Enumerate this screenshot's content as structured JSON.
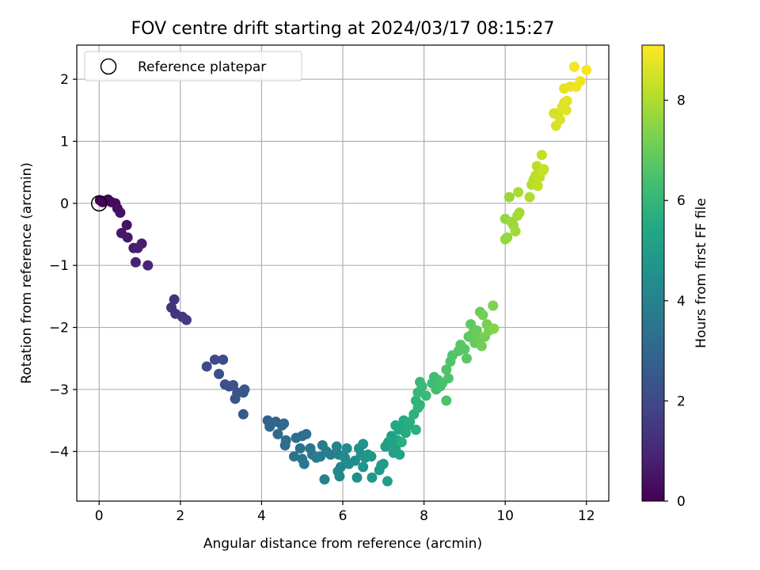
{
  "chart_data": {
    "type": "scatter",
    "title": "FOV centre drift starting at 2024/03/17 08:15:27",
    "xlabel": "Angular distance from reference (arcmin)",
    "ylabel": "Rotation from reference (arcmin)",
    "xlim": [
      -0.55,
      12.55
    ],
    "ylim": [
      -4.8,
      2.55
    ],
    "xticks": [
      0,
      2,
      4,
      6,
      8,
      10,
      12
    ],
    "yticks": [
      -4,
      -3,
      -2,
      -1,
      0,
      1,
      2
    ],
    "grid": true,
    "legend": {
      "position": "upper-left",
      "entries": [
        {
          "label": "Reference platepar",
          "marker": "open-circle"
        }
      ]
    },
    "reference_point": {
      "x": 0,
      "y": 0
    },
    "colorbar": {
      "label": "Hours from first FF file",
      "colormap": "viridis",
      "range": [
        0,
        9.1
      ],
      "ticks": [
        0,
        2,
        4,
        6,
        8
      ]
    },
    "points": [
      {
        "x": 0.02,
        "y": 0.05,
        "t": 0.0
      },
      {
        "x": 0.08,
        "y": 0.02,
        "t": 0.05
      },
      {
        "x": 0.14,
        "y": 0.04,
        "t": 0.1
      },
      {
        "x": 0.22,
        "y": 0.06,
        "t": 0.15
      },
      {
        "x": 0.3,
        "y": 0.02,
        "t": 0.2
      },
      {
        "x": 0.4,
        "y": 0.0,
        "t": 0.3
      },
      {
        "x": 0.45,
        "y": -0.08,
        "t": 0.35
      },
      {
        "x": 0.52,
        "y": -0.15,
        "t": 0.4
      },
      {
        "x": 0.68,
        "y": -0.35,
        "t": 0.5
      },
      {
        "x": 0.55,
        "y": -0.48,
        "t": 0.55
      },
      {
        "x": 0.7,
        "y": -0.55,
        "t": 0.6
      },
      {
        "x": 0.85,
        "y": -0.72,
        "t": 0.7
      },
      {
        "x": 1.05,
        "y": -0.65,
        "t": 0.75
      },
      {
        "x": 0.95,
        "y": -0.72,
        "t": 0.8
      },
      {
        "x": 0.9,
        "y": -0.95,
        "t": 0.85
      },
      {
        "x": 1.2,
        "y": -1.0,
        "t": 0.95
      },
      {
        "x": 1.78,
        "y": -1.68,
        "t": 1.3
      },
      {
        "x": 1.85,
        "y": -1.55,
        "t": 1.35
      },
      {
        "x": 1.88,
        "y": -1.78,
        "t": 1.4
      },
      {
        "x": 2.05,
        "y": -1.83,
        "t": 1.5
      },
      {
        "x": 2.15,
        "y": -1.88,
        "t": 1.55
      },
      {
        "x": 2.65,
        "y": -2.63,
        "t": 2.0
      },
      {
        "x": 2.85,
        "y": -2.52,
        "t": 2.05
      },
      {
        "x": 3.05,
        "y": -2.52,
        "t": 2.1
      },
      {
        "x": 2.95,
        "y": -2.75,
        "t": 2.15
      },
      {
        "x": 3.1,
        "y": -2.92,
        "t": 2.2
      },
      {
        "x": 3.2,
        "y": -2.95,
        "t": 2.25
      },
      {
        "x": 3.3,
        "y": -2.93,
        "t": 2.3
      },
      {
        "x": 3.4,
        "y": -3.05,
        "t": 2.35
      },
      {
        "x": 3.35,
        "y": -3.15,
        "t": 2.4
      },
      {
        "x": 3.55,
        "y": -3.05,
        "t": 2.45
      },
      {
        "x": 3.58,
        "y": -3.0,
        "t": 2.5
      },
      {
        "x": 3.55,
        "y": -3.4,
        "t": 2.55
      },
      {
        "x": 4.15,
        "y": -3.5,
        "t": 2.85
      },
      {
        "x": 4.35,
        "y": -3.52,
        "t": 2.9
      },
      {
        "x": 4.2,
        "y": -3.6,
        "t": 2.95
      },
      {
        "x": 4.5,
        "y": -3.58,
        "t": 3.0
      },
      {
        "x": 4.55,
        "y": -3.55,
        "t": 3.05
      },
      {
        "x": 4.4,
        "y": -3.72,
        "t": 3.1
      },
      {
        "x": 4.6,
        "y": -3.82,
        "t": 3.15
      },
      {
        "x": 4.58,
        "y": -3.9,
        "t": 3.2
      },
      {
        "x": 4.85,
        "y": -3.78,
        "t": 3.25
      },
      {
        "x": 5.0,
        "y": -3.75,
        "t": 3.3
      },
      {
        "x": 5.1,
        "y": -3.72,
        "t": 3.35
      },
      {
        "x": 4.95,
        "y": -3.95,
        "t": 3.4
      },
      {
        "x": 5.2,
        "y": -3.95,
        "t": 3.45
      },
      {
        "x": 4.8,
        "y": -4.08,
        "t": 3.5
      },
      {
        "x": 5.0,
        "y": -4.12,
        "t": 3.55
      },
      {
        "x": 5.05,
        "y": -4.2,
        "t": 3.6
      },
      {
        "x": 5.25,
        "y": -4.05,
        "t": 3.65
      },
      {
        "x": 5.35,
        "y": -4.1,
        "t": 3.7
      },
      {
        "x": 5.45,
        "y": -4.08,
        "t": 3.75
      },
      {
        "x": 5.5,
        "y": -3.9,
        "t": 3.8
      },
      {
        "x": 5.6,
        "y": -4.0,
        "t": 3.85
      },
      {
        "x": 5.7,
        "y": -4.05,
        "t": 3.9
      },
      {
        "x": 5.55,
        "y": -4.45,
        "t": 3.95
      },
      {
        "x": 5.85,
        "y": -3.92,
        "t": 4.0
      },
      {
        "x": 5.9,
        "y": -4.05,
        "t": 4.05
      },
      {
        "x": 5.95,
        "y": -4.25,
        "t": 4.1
      },
      {
        "x": 5.88,
        "y": -4.32,
        "t": 4.15
      },
      {
        "x": 5.92,
        "y": -4.4,
        "t": 4.2
      },
      {
        "x": 6.05,
        "y": -4.1,
        "t": 4.25
      },
      {
        "x": 6.1,
        "y": -3.95,
        "t": 4.3
      },
      {
        "x": 6.15,
        "y": -4.2,
        "t": 4.35
      },
      {
        "x": 6.3,
        "y": -4.15,
        "t": 4.4
      },
      {
        "x": 6.35,
        "y": -4.42,
        "t": 4.45
      },
      {
        "x": 6.4,
        "y": -3.95,
        "t": 4.5
      },
      {
        "x": 6.45,
        "y": -4.05,
        "t": 4.55
      },
      {
        "x": 6.5,
        "y": -3.88,
        "t": 4.6
      },
      {
        "x": 6.55,
        "y": -4.1,
        "t": 4.65
      },
      {
        "x": 6.5,
        "y": -4.25,
        "t": 4.7
      },
      {
        "x": 6.62,
        "y": -4.05,
        "t": 4.75
      },
      {
        "x": 6.7,
        "y": -4.08,
        "t": 4.8
      },
      {
        "x": 6.72,
        "y": -4.42,
        "t": 4.85
      },
      {
        "x": 6.9,
        "y": -4.3,
        "t": 4.9
      },
      {
        "x": 6.95,
        "y": -4.22,
        "t": 4.95
      },
      {
        "x": 7.0,
        "y": -4.2,
        "t": 5.0
      },
      {
        "x": 7.05,
        "y": -3.92,
        "t": 5.05
      },
      {
        "x": 7.1,
        "y": -4.48,
        "t": 5.1
      },
      {
        "x": 7.12,
        "y": -3.85,
        "t": 5.1
      },
      {
        "x": 7.2,
        "y": -3.75,
        "t": 5.15
      },
      {
        "x": 7.25,
        "y": -4.02,
        "t": 5.15
      },
      {
        "x": 7.3,
        "y": -3.95,
        "t": 5.2
      },
      {
        "x": 7.2,
        "y": -3.85,
        "t": 5.25
      },
      {
        "x": 7.35,
        "y": -3.82,
        "t": 5.3
      },
      {
        "x": 7.4,
        "y": -4.05,
        "t": 5.3
      },
      {
        "x": 7.38,
        "y": -3.65,
        "t": 5.35
      },
      {
        "x": 7.45,
        "y": -3.6,
        "t": 5.4
      },
      {
        "x": 7.3,
        "y": -3.58,
        "t": 5.45
      },
      {
        "x": 7.5,
        "y": -3.5,
        "t": 5.5
      },
      {
        "x": 7.55,
        "y": -3.7,
        "t": 5.55
      },
      {
        "x": 7.6,
        "y": -3.58,
        "t": 5.6
      },
      {
        "x": 7.65,
        "y": -3.52,
        "t": 5.65
      },
      {
        "x": 7.45,
        "y": -3.85,
        "t": 5.7
      },
      {
        "x": 7.8,
        "y": -3.65,
        "t": 5.75
      },
      {
        "x": 7.75,
        "y": -3.4,
        "t": 5.8
      },
      {
        "x": 7.85,
        "y": -3.3,
        "t": 5.85
      },
      {
        "x": 7.8,
        "y": -3.18,
        "t": 5.9
      },
      {
        "x": 7.9,
        "y": -3.25,
        "t": 5.95
      },
      {
        "x": 7.85,
        "y": -3.05,
        "t": 6.0
      },
      {
        "x": 7.95,
        "y": -2.95,
        "t": 6.05
      },
      {
        "x": 7.9,
        "y": -2.88,
        "t": 6.1
      },
      {
        "x": 8.05,
        "y": -3.1,
        "t": 6.15
      },
      {
        "x": 8.2,
        "y": -2.9,
        "t": 6.2
      },
      {
        "x": 8.25,
        "y": -2.8,
        "t": 6.25
      },
      {
        "x": 8.3,
        "y": -3.0,
        "t": 6.3
      },
      {
        "x": 8.35,
        "y": -2.85,
        "t": 6.35
      },
      {
        "x": 8.4,
        "y": -2.95,
        "t": 6.4
      },
      {
        "x": 8.45,
        "y": -2.9,
        "t": 6.4
      },
      {
        "x": 8.55,
        "y": -3.18,
        "t": 6.45
      },
      {
        "x": 8.6,
        "y": -2.82,
        "t": 6.5
      },
      {
        "x": 8.55,
        "y": -2.68,
        "t": 6.55
      },
      {
        "x": 8.65,
        "y": -2.55,
        "t": 6.55
      },
      {
        "x": 8.7,
        "y": -2.45,
        "t": 6.6
      },
      {
        "x": 8.85,
        "y": -2.38,
        "t": 6.65
      },
      {
        "x": 8.9,
        "y": -2.28,
        "t": 6.7
      },
      {
        "x": 9.0,
        "y": -2.35,
        "t": 6.7
      },
      {
        "x": 9.05,
        "y": -2.5,
        "t": 6.75
      },
      {
        "x": 9.1,
        "y": -2.15,
        "t": 6.8
      },
      {
        "x": 9.15,
        "y": -1.95,
        "t": 6.85
      },
      {
        "x": 9.2,
        "y": -2.1,
        "t": 6.9
      },
      {
        "x": 9.25,
        "y": -2.25,
        "t": 6.95
      },
      {
        "x": 9.3,
        "y": -2.05,
        "t": 7.0
      },
      {
        "x": 9.35,
        "y": -2.2,
        "t": 7.05
      },
      {
        "x": 9.38,
        "y": -1.75,
        "t": 7.1
      },
      {
        "x": 9.42,
        "y": -2.3,
        "t": 7.15
      },
      {
        "x": 9.45,
        "y": -1.8,
        "t": 7.15
      },
      {
        "x": 9.5,
        "y": -2.15,
        "t": 7.2
      },
      {
        "x": 9.55,
        "y": -1.95,
        "t": 7.25
      },
      {
        "x": 9.6,
        "y": -2.05,
        "t": 7.3
      },
      {
        "x": 9.7,
        "y": -1.65,
        "t": 7.35
      },
      {
        "x": 9.72,
        "y": -2.02,
        "t": 7.4
      },
      {
        "x": 10.0,
        "y": -0.25,
        "t": 7.6
      },
      {
        "x": 10.05,
        "y": -0.55,
        "t": 7.65
      },
      {
        "x": 10.0,
        "y": -0.58,
        "t": 7.65
      },
      {
        "x": 10.1,
        "y": 0.1,
        "t": 7.7
      },
      {
        "x": 10.15,
        "y": -0.3,
        "t": 7.75
      },
      {
        "x": 10.2,
        "y": -0.35,
        "t": 7.75
      },
      {
        "x": 10.25,
        "y": -0.45,
        "t": 7.8
      },
      {
        "x": 10.3,
        "y": -0.2,
        "t": 7.85
      },
      {
        "x": 10.35,
        "y": -0.15,
        "t": 7.85
      },
      {
        "x": 10.32,
        "y": 0.18,
        "t": 7.9
      },
      {
        "x": 10.6,
        "y": 0.1,
        "t": 8.0
      },
      {
        "x": 10.65,
        "y": 0.3,
        "t": 8.05
      },
      {
        "x": 10.7,
        "y": 0.38,
        "t": 8.1
      },
      {
        "x": 10.75,
        "y": 0.45,
        "t": 8.15
      },
      {
        "x": 10.78,
        "y": 0.6,
        "t": 8.15
      },
      {
        "x": 10.8,
        "y": 0.28,
        "t": 8.2
      },
      {
        "x": 10.85,
        "y": 0.42,
        "t": 8.2
      },
      {
        "x": 10.9,
        "y": 0.78,
        "t": 8.25
      },
      {
        "x": 10.92,
        "y": 0.52,
        "t": 8.3
      },
      {
        "x": 10.95,
        "y": 0.55,
        "t": 8.3
      },
      {
        "x": 11.2,
        "y": 1.45,
        "t": 8.5
      },
      {
        "x": 11.25,
        "y": 1.25,
        "t": 8.55
      },
      {
        "x": 11.3,
        "y": 1.45,
        "t": 8.55
      },
      {
        "x": 11.35,
        "y": 1.35,
        "t": 8.6
      },
      {
        "x": 11.4,
        "y": 1.55,
        "t": 8.65
      },
      {
        "x": 11.45,
        "y": 1.62,
        "t": 8.65
      },
      {
        "x": 11.5,
        "y": 1.5,
        "t": 8.7
      },
      {
        "x": 11.52,
        "y": 1.65,
        "t": 8.7
      },
      {
        "x": 11.45,
        "y": 1.85,
        "t": 8.75
      },
      {
        "x": 11.6,
        "y": 1.88,
        "t": 8.8
      },
      {
        "x": 11.75,
        "y": 1.88,
        "t": 8.85
      },
      {
        "x": 11.85,
        "y": 1.97,
        "t": 8.9
      },
      {
        "x": 11.7,
        "y": 2.2,
        "t": 8.95
      },
      {
        "x": 12.0,
        "y": 2.15,
        "t": 9.0
      }
    ]
  }
}
